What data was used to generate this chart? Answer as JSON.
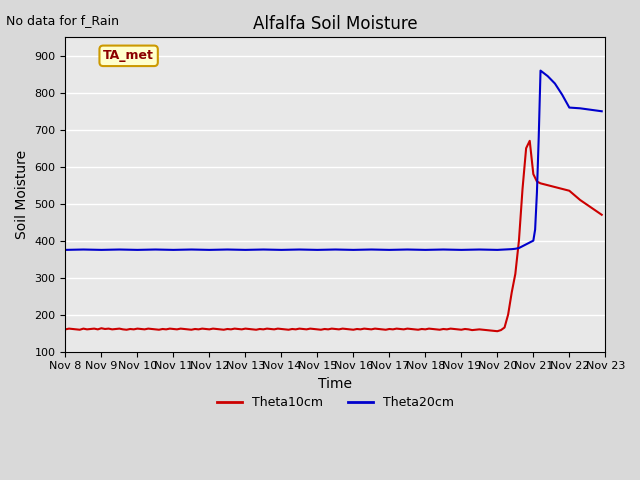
{
  "title": "Alfalfa Soil Moisture",
  "top_left_text": "No data for f_Rain",
  "xlabel": "Time",
  "ylabel": "Soil Moisture",
  "ylim": [
    100,
    950
  ],
  "yticks": [
    100,
    200,
    300,
    400,
    500,
    600,
    700,
    800,
    900
  ],
  "legend_label_box": "TA_met",
  "legend_box_facecolor": "#ffffcc",
  "legend_box_edgecolor": "#cc9900",
  "red_color": "#cc0000",
  "blue_color": "#0000cc",
  "theta10_label": "Theta10cm",
  "theta20_label": "Theta20cm",
  "x_days": [
    8,
    9,
    10,
    11,
    12,
    13,
    14,
    15,
    16,
    17,
    18,
    19,
    20,
    21,
    22,
    23
  ],
  "theta10_x": [
    8.0,
    8.1,
    8.2,
    8.3,
    8.4,
    8.5,
    8.6,
    8.7,
    8.8,
    8.9,
    9.0,
    9.1,
    9.2,
    9.3,
    9.4,
    9.5,
    9.6,
    9.7,
    9.8,
    9.9,
    10.0,
    10.1,
    10.2,
    10.3,
    10.4,
    10.5,
    10.6,
    10.7,
    10.8,
    10.9,
    11.0,
    11.1,
    11.2,
    11.3,
    11.4,
    11.5,
    11.6,
    11.7,
    11.8,
    11.9,
    12.0,
    12.1,
    12.2,
    12.3,
    12.4,
    12.5,
    12.6,
    12.7,
    12.8,
    12.9,
    13.0,
    13.1,
    13.2,
    13.3,
    13.4,
    13.5,
    13.6,
    13.7,
    13.8,
    13.9,
    14.0,
    14.1,
    14.2,
    14.3,
    14.4,
    14.5,
    14.6,
    14.7,
    14.8,
    14.9,
    15.0,
    15.1,
    15.2,
    15.3,
    15.4,
    15.5,
    15.6,
    15.7,
    15.8,
    15.9,
    16.0,
    16.1,
    16.2,
    16.3,
    16.4,
    16.5,
    16.6,
    16.7,
    16.8,
    16.9,
    17.0,
    17.1,
    17.2,
    17.3,
    17.4,
    17.5,
    17.6,
    17.7,
    17.8,
    17.9,
    18.0,
    18.1,
    18.2,
    18.3,
    18.4,
    18.5,
    18.6,
    18.7,
    18.8,
    18.9,
    19.0,
    19.1,
    19.2,
    19.3,
    19.4,
    19.5,
    19.6,
    19.7,
    19.8,
    19.9,
    20.0,
    20.1,
    20.2,
    20.3,
    20.4,
    20.5,
    20.6,
    20.7,
    20.8,
    20.9,
    21.0,
    21.1,
    21.2,
    21.4,
    21.6,
    21.8,
    22.0,
    22.3,
    22.6,
    22.9
  ],
  "theta10_y": [
    160,
    162,
    161,
    160,
    159,
    162,
    160,
    161,
    162,
    160,
    163,
    161,
    162,
    160,
    161,
    162,
    160,
    159,
    161,
    160,
    162,
    161,
    160,
    162,
    161,
    160,
    159,
    161,
    160,
    162,
    161,
    160,
    162,
    161,
    160,
    159,
    161,
    160,
    162,
    161,
    160,
    162,
    161,
    160,
    159,
    161,
    160,
    162,
    161,
    160,
    162,
    161,
    160,
    159,
    161,
    160,
    162,
    161,
    160,
    162,
    161,
    160,
    159,
    161,
    160,
    162,
    161,
    160,
    162,
    161,
    160,
    159,
    161,
    160,
    162,
    161,
    160,
    162,
    161,
    160,
    159,
    161,
    160,
    162,
    161,
    160,
    162,
    161,
    160,
    159,
    161,
    160,
    162,
    161,
    160,
    162,
    161,
    160,
    159,
    161,
    160,
    162,
    161,
    160,
    159,
    161,
    160,
    162,
    161,
    160,
    159,
    161,
    160,
    158,
    159,
    160,
    159,
    158,
    157,
    156,
    155,
    158,
    165,
    200,
    260,
    310,
    400,
    540,
    650,
    670,
    580,
    560,
    555,
    550,
    545,
    540,
    535,
    510,
    490,
    470
  ],
  "theta20_x": [
    8.0,
    8.5,
    9.0,
    9.5,
    10.0,
    10.5,
    11.0,
    11.5,
    12.0,
    12.5,
    13.0,
    13.5,
    14.0,
    14.5,
    15.0,
    15.5,
    16.0,
    16.5,
    17.0,
    17.5,
    18.0,
    18.5,
    19.0,
    19.5,
    20.0,
    20.2,
    20.4,
    20.5,
    20.6,
    20.7,
    20.8,
    20.9,
    21.0,
    21.05,
    21.1,
    21.15,
    21.2,
    21.4,
    21.6,
    21.8,
    22.0,
    22.3,
    22.6,
    22.9
  ],
  "theta20_y": [
    375,
    376,
    375,
    376,
    375,
    376,
    375,
    376,
    375,
    376,
    375,
    376,
    375,
    376,
    375,
    376,
    375,
    376,
    375,
    376,
    375,
    376,
    375,
    376,
    375,
    376,
    377,
    378,
    380,
    385,
    390,
    395,
    400,
    430,
    530,
    680,
    860,
    845,
    825,
    795,
    760,
    758,
    754,
    750
  ]
}
